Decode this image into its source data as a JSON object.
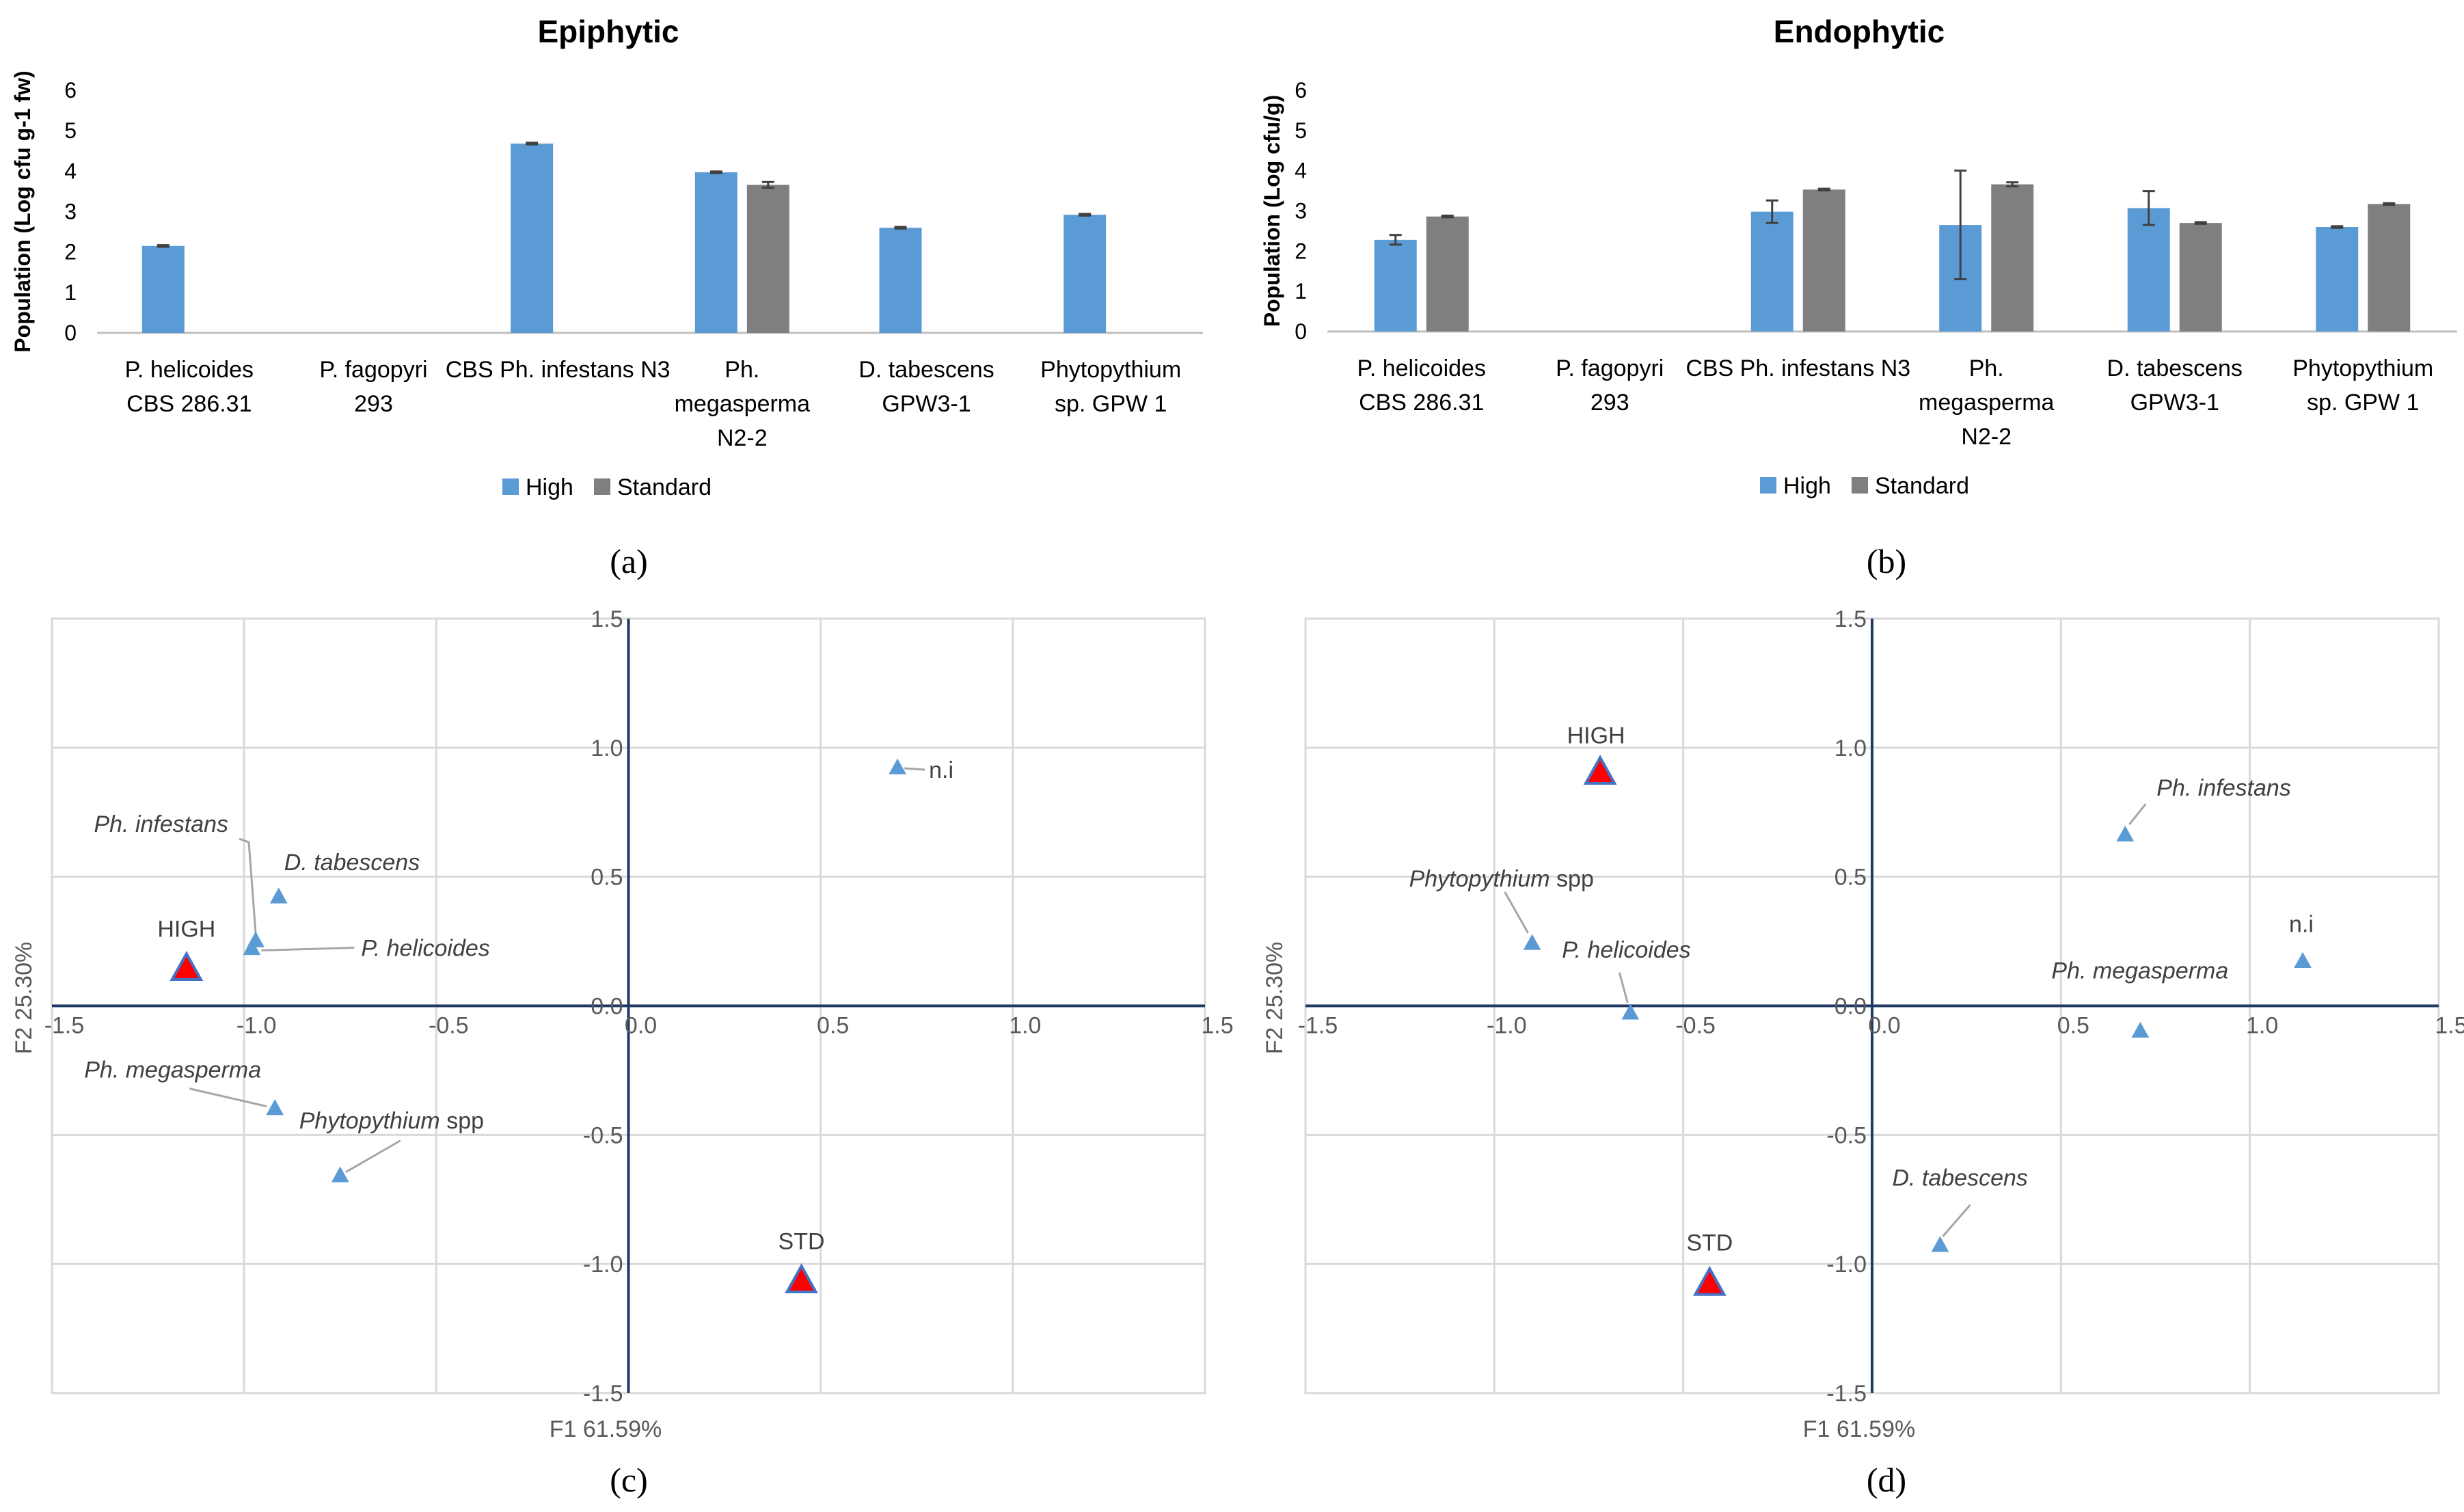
{
  "chart_data": [
    {
      "id": "a",
      "type": "bar",
      "title": "Epiphytic",
      "ylabel": "Population (Log cfu g-1 fw)",
      "ylim": [
        0,
        6
      ],
      "yticks": [
        "0",
        "1",
        "2",
        "3",
        "4",
        "5",
        "6"
      ],
      "categories": [
        [
          "P. helicoides",
          "CBS 286.31"
        ],
        [
          "P. fagopyri",
          "293"
        ],
        [
          "CBS Ph. infestans N3"
        ],
        [
          "Ph.",
          "megasperma",
          "N2-2"
        ],
        [
          "D. tabescens",
          "GPW3-1"
        ],
        [
          "Phytopythium",
          "sp.  GPW 1"
        ]
      ],
      "series": [
        {
          "name": "High",
          "color": "#5b9bd5",
          "values": [
            2.15,
            null,
            4.68,
            3.97,
            2.6,
            2.92
          ],
          "errors": [
            0.02,
            null,
            0.02,
            0.02,
            0.02,
            0.02
          ]
        },
        {
          "name": "Standard",
          "color": "#7f7f7f",
          "values": [
            null,
            null,
            null,
            3.66,
            null,
            null
          ],
          "errors": [
            null,
            null,
            null,
            0.07,
            null,
            null
          ]
        }
      ],
      "panel_label": "(a)"
    },
    {
      "id": "b",
      "type": "bar",
      "title": "Endophytic",
      "ylabel": "Population (Log cfu/g)",
      "ylim": [
        0,
        6
      ],
      "yticks": [
        "0",
        "1",
        "2",
        "3",
        "4",
        "5",
        "6"
      ],
      "categories": [
        [
          "P. helicoides",
          "CBS 286.31"
        ],
        [
          "P. fagopyri",
          "293"
        ],
        [
          "CBS Ph. infestans N3"
        ],
        [
          "Ph.",
          "megasperma",
          "N2-2"
        ],
        [
          "D. tabescens",
          "GPW3-1"
        ],
        [
          "Phytopythium",
          "sp.  GPW 1"
        ]
      ],
      "series": [
        {
          "name": "High",
          "color": "#5b9bd5",
          "values": [
            2.28,
            null,
            2.98,
            2.65,
            3.07,
            2.6
          ],
          "errors": [
            0.12,
            null,
            0.28,
            1.35,
            0.42,
            0.02
          ]
        },
        {
          "name": "Standard",
          "color": "#7f7f7f",
          "values": [
            2.86,
            null,
            3.53,
            3.66,
            2.7,
            3.17
          ],
          "errors": [
            0.02,
            null,
            0.02,
            0.05,
            0.02,
            0.02
          ]
        }
      ],
      "panel_label": "(b)"
    },
    {
      "id": "c",
      "type": "scatter",
      "xlabel": "F1 61.59%",
      "ylabel": "F2 25.30%",
      "xlim": [
        -1.5,
        1.5
      ],
      "ylim": [
        -1.5,
        1.5
      ],
      "xticks": [
        "-1.5",
        "-1.0",
        "-0.5",
        "0.0",
        "0.5",
        "1.0",
        "1.5"
      ],
      "yticks": [
        "-1.5",
        "-1.0",
        "-0.5",
        "0.0",
        "0.5",
        "1.0",
        "1.5"
      ],
      "points": [
        {
          "label": "HIGH",
          "x": -1.15,
          "y": 0.14,
          "group": "treatment"
        },
        {
          "label": "STD",
          "x": 0.45,
          "y": -1.07,
          "group": "treatment"
        },
        {
          "label": "n.i",
          "x": 0.7,
          "y": 0.92,
          "group": "isolate"
        },
        {
          "label": "D. tabescens",
          "x": -0.91,
          "y": 0.42,
          "group": "isolate"
        },
        {
          "label": "Ph. infestans",
          "x": -0.97,
          "y": 0.25,
          "group": "isolate"
        },
        {
          "label": "P. helicoides",
          "x": -0.98,
          "y": 0.22,
          "group": "isolate"
        },
        {
          "label": "Ph. megasperma",
          "x": -0.92,
          "y": -0.4,
          "group": "isolate"
        },
        {
          "label": "Phytopythium",
          "label_suffix": "spp",
          "x": -0.75,
          "y": -0.66,
          "group": "isolate"
        }
      ],
      "panel_label": "(c)"
    },
    {
      "id": "d",
      "type": "scatter",
      "xlabel": "F1 61.59%",
      "ylabel": "F2 25.30%",
      "xlim": [
        -1.5,
        1.5
      ],
      "ylim": [
        -1.5,
        1.5
      ],
      "xticks": [
        "-1.5",
        "-1.0",
        "-0.5",
        "0.0",
        "0.5",
        "1.0",
        "1.5"
      ],
      "yticks": [
        "-1.5",
        "-1.0",
        "-0.5",
        "0.0",
        "0.5",
        "1.0",
        "1.5"
      ],
      "points": [
        {
          "label": "HIGH",
          "x": -0.72,
          "y": 0.9,
          "group": "treatment"
        },
        {
          "label": "STD",
          "x": -0.43,
          "y": -1.08,
          "group": "treatment"
        },
        {
          "label": "Ph. infestans",
          "x": 0.67,
          "y": 0.66,
          "group": "isolate"
        },
        {
          "label": "n.i",
          "x": 1.14,
          "y": 0.17,
          "group": "isolate"
        },
        {
          "label": "Phytopythium",
          "label_suffix": "spp",
          "x": -0.9,
          "y": 0.24,
          "group": "isolate"
        },
        {
          "label": "P.  helicoides",
          "x": -0.64,
          "y": -0.03,
          "group": "isolate"
        },
        {
          "label": "Ph. megasperma",
          "x": 0.71,
          "y": -0.1,
          "group": "isolate"
        },
        {
          "label": "D. tabescens",
          "x": 0.18,
          "y": -0.93,
          "group": "isolate"
        }
      ],
      "panel_label": "(d)"
    }
  ]
}
